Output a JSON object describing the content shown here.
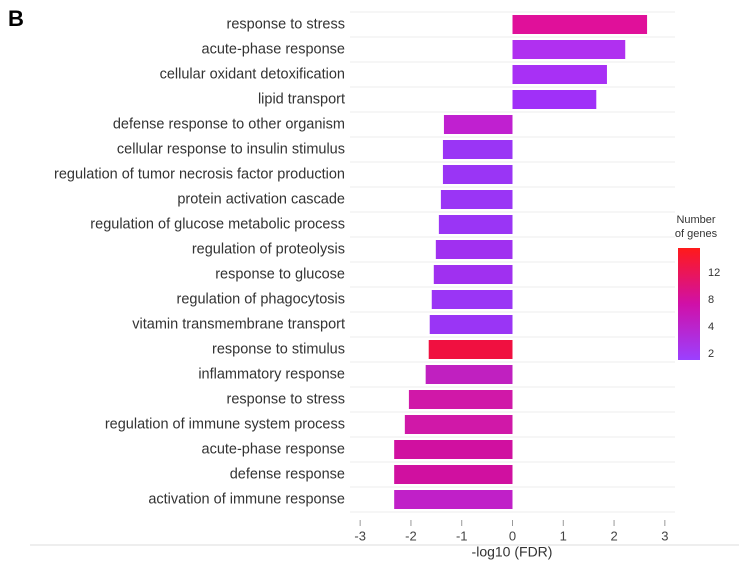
{
  "chart_data": {
    "type": "bar",
    "orientation": "horizontal",
    "panel_label": "B",
    "xlabel": "-log10 (FDR)",
    "categories": [
      "response to stress",
      "acute-phase response",
      "cellular oxidant detoxification",
      "lipid transport",
      "defense response to other organism",
      "cellular response to insulin stimulus",
      "regulation of tumor necrosis factor production",
      "protein activation cascade",
      "regulation of glucose metabolic process",
      "regulation of proteolysis",
      "response to glucose",
      "regulation of phagocytosis",
      "vitamin transmembrane transport",
      "response to stimulus",
      "inflammatory response",
      "response to stress",
      "regulation of immune system process",
      "acute-phase response",
      "defense response",
      "activation of immune response"
    ],
    "values": [
      2.65,
      2.22,
      1.86,
      1.65,
      -1.35,
      -1.37,
      -1.37,
      -1.41,
      -1.45,
      -1.51,
      -1.55,
      -1.59,
      -1.63,
      -1.65,
      -1.71,
      -2.04,
      -2.12,
      -2.33,
      -2.33,
      -2.33
    ],
    "colors": [
      "#e0109a",
      "#b030f0",
      "#a830f5",
      "#a030f8",
      "#c020d0",
      "#9a35f5",
      "#9a35f5",
      "#9a35f5",
      "#9a35f5",
      "#a030f0",
      "#a030f0",
      "#9a35f5",
      "#9a35f5",
      "#f01040",
      "#c020c0",
      "#d018a8",
      "#d018a8",
      "#d010a0",
      "#d010a0",
      "#c020c8"
    ],
    "xlim": [
      -3.2,
      3.2
    ],
    "xticks": [
      -3,
      -2,
      -1,
      0,
      1,
      2,
      3
    ],
    "legend": {
      "title": "Number of genes",
      "ticks": [
        2,
        4,
        8,
        12
      ]
    }
  }
}
